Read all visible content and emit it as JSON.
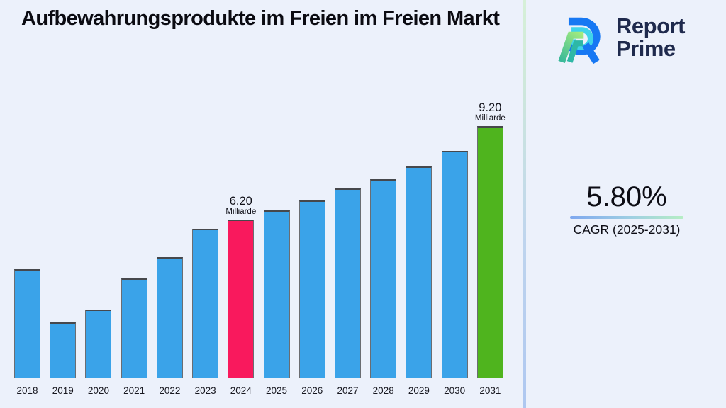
{
  "title": "Aufbewahrungsprodukte im Freien im Freien Markt",
  "logo": {
    "line1": "Report",
    "line2": "Prime",
    "icon": "report-prime-logo-icon",
    "text_color": "#1F2A4D"
  },
  "cagr": {
    "value": "5.80%",
    "label": "CAGR (2025-2031)"
  },
  "chart_data": {
    "type": "bar",
    "title": "Aufbewahrungsprodukte im Freien im Freien Markt",
    "categories": [
      "2018",
      "2019",
      "2020",
      "2021",
      "2022",
      "2023",
      "2024",
      "2025",
      "2026",
      "2027",
      "2028",
      "2029",
      "2030",
      "2031"
    ],
    "values": [
      4.6,
      2.9,
      3.3,
      4.3,
      5.0,
      5.9,
      6.2,
      6.5,
      6.8,
      7.2,
      7.5,
      7.9,
      8.4,
      9.2
    ],
    "unit": "Milliarde",
    "xlabel": "",
    "ylabel": "",
    "ylim": [
      1.1,
      10.2
    ],
    "grid": false,
    "legend": false,
    "annotations": [
      {
        "category": "2024",
        "value_text": "6.20",
        "unit_text": "Milliarde"
      },
      {
        "category": "2031",
        "value_text": "9.20",
        "unit_text": "Milliarde"
      }
    ],
    "colors": {
      "default_bar": "#3AA3E9",
      "bar_overrides": {
        "2024": "#F9195D",
        "2031": "#4FB41E"
      }
    }
  },
  "accent_colors": {
    "background": "#ECF1FB",
    "divider_top": "#d6f0d8",
    "divider_bottom": "#aec7f0",
    "underline_left": "#7fa8ef",
    "underline_right": "#b6eec4",
    "logo_blue": "#1778F3",
    "logo_cyan": "#3FD4EA",
    "logo_green": "#A4EC7E",
    "logo_teal": "#2EB8A6"
  }
}
